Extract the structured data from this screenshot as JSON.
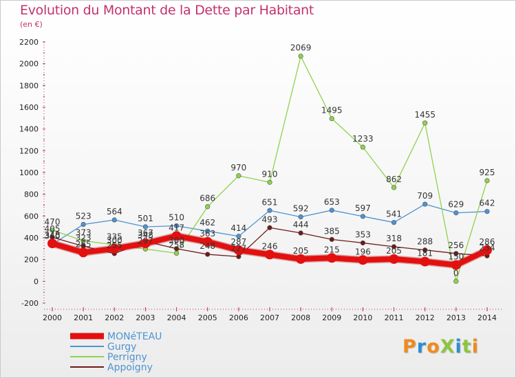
{
  "title": "Evolution du Montant de la Dette par Habitant",
  "unit_label": "(en €)",
  "logo": {
    "text": "ProXiti",
    "colors": [
      "#f08a1c",
      "#2b8fd1",
      "#f08a1c",
      "#8cc63f",
      "#2b8fd1",
      "#8cc63f",
      "#f08a1c"
    ]
  },
  "chart_data": {
    "type": "line",
    "title": "Evolution du Montant de la Dette par Habitant",
    "ylabel": "(en €)",
    "x": [
      2000,
      2001,
      2002,
      2003,
      2004,
      2005,
      2006,
      2007,
      2008,
      2009,
      2010,
      2011,
      2012,
      2013,
      2014
    ],
    "ylim": [
      -200,
      2200
    ],
    "yticks": [
      -200,
      0,
      200,
      400,
      600,
      800,
      1000,
      1200,
      1400,
      1600,
      1800,
      2000,
      2200
    ],
    "grid": false,
    "legend_position": "bottom-left",
    "series": [
      {
        "name": "MONéTEAU",
        "color": "#e31010",
        "values": [
          348,
          265,
          300,
          348,
          417,
          363,
          287,
          246,
          205,
          215,
          196,
          205,
          181,
          150,
          286
        ],
        "labels": [
          "348",
          "265",
          "300",
          "348",
          "417",
          "363",
          "287",
          "246",
          "205",
          "215",
          "196",
          "205",
          "181",
          "150",
          "286"
        ]
      },
      {
        "name": "Gurgy",
        "color": "#4d93d1",
        "values": [
          340,
          523,
          564,
          501,
          510,
          462,
          414,
          651,
          592,
          653,
          597,
          541,
          709,
          629,
          642
        ],
        "labels": [
          "340",
          "523",
          "564",
          "501",
          "510",
          "462",
          "414",
          "651",
          "592",
          "653",
          "597",
          "541",
          "709",
          "629",
          "642"
        ]
      },
      {
        "name": "Perrigny",
        "color": "#8fd24b",
        "values": [
          470,
          373,
          335,
          297,
          258,
          686,
          970,
          910,
          2069,
          1495,
          1233,
          862,
          1455,
          0,
          925
        ],
        "labels": [
          "470",
          "373",
          "335",
          "297",
          "258",
          "686",
          "970",
          "910",
          "2069",
          "1495",
          "1233",
          "862",
          "1455",
          "0",
          "925"
        ]
      },
      {
        "name": "Appoigny",
        "color": "#6e1a1a",
        "values": [
          405,
          323,
          255,
          367,
          300,
          248,
          227,
          493,
          444,
          385,
          353,
          318,
          288,
          256,
          234
        ],
        "labels": [
          "405",
          "323",
          "255",
          "367",
          "300",
          "248",
          "227",
          "493",
          "444",
          "385",
          "353",
          "318",
          "288",
          "256",
          "234"
        ]
      }
    ]
  }
}
